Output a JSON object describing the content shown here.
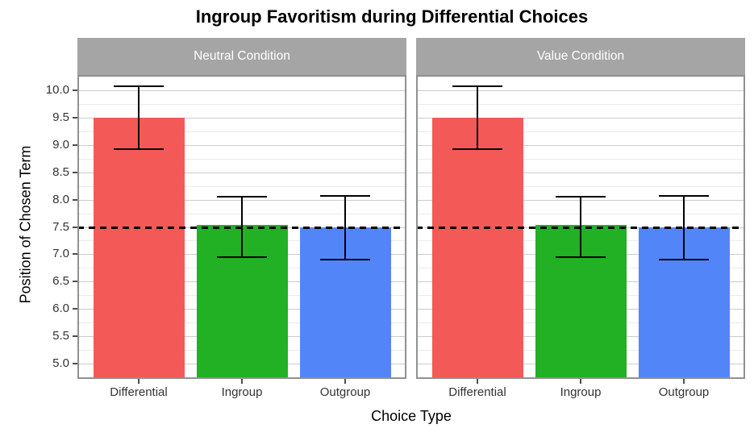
{
  "chart_data": {
    "type": "bar",
    "title": "Ingroup Favoritism during Differential Choices",
    "xlabel": "Choice Type",
    "ylabel": "Position of Chosen Term",
    "categories": [
      "Differential",
      "Ingroup",
      "Outgroup"
    ],
    "facets": [
      {
        "label": "Neutral Condition",
        "values": [
          9.5,
          7.53,
          7.49
        ],
        "ci_low": [
          8.93,
          6.95,
          6.91
        ],
        "ci_high": [
          10.08,
          8.05,
          8.07
        ]
      },
      {
        "label": "Value Condition",
        "values": [
          9.5,
          7.53,
          7.49
        ],
        "ci_low": [
          8.93,
          6.95,
          6.91
        ],
        "ci_high": [
          10.08,
          8.05,
          8.07
        ]
      }
    ],
    "bar_colors": [
      "#F35A57",
      "#22B025",
      "#5286F8"
    ],
    "reference_line": {
      "y": 7.5,
      "style": "dashed",
      "color": "#000000"
    },
    "y_ticks": [
      5.0,
      5.5,
      6.0,
      6.5,
      7.0,
      7.5,
      8.0,
      8.5,
      9.0,
      9.5,
      10.0
    ],
    "y_tick_labels": [
      "5.0",
      "5.5",
      "6.0",
      "6.5",
      "7.0",
      "7.5",
      "8.0",
      "8.5",
      "9.0",
      "9.5",
      "10.0"
    ],
    "ylim": [
      4.72,
      10.28
    ],
    "grid": {
      "major_step": 0.5,
      "minor_step": 0.25,
      "grid_on": true
    },
    "legend_position": "none",
    "error_bars": true
  }
}
